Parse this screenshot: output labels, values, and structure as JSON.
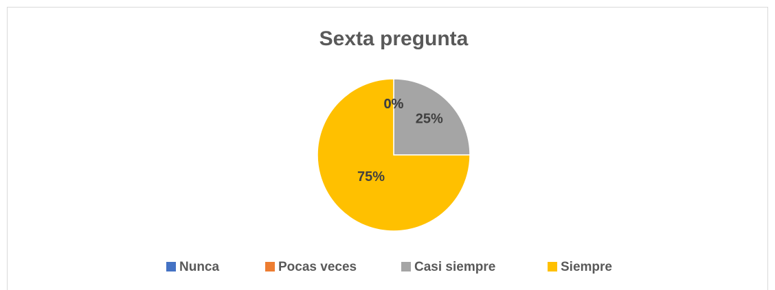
{
  "chart_data": {
    "type": "pie",
    "title": "Sexta pregunta",
    "categories": [
      "Nunca",
      "Pocas veces",
      "Casi siempre",
      "Siempre"
    ],
    "values": [
      0,
      0,
      25,
      75
    ],
    "value_labels": [
      "0%",
      "0%",
      "25%",
      "75%"
    ],
    "colors": [
      "#4472c4",
      "#ed7d31",
      "#a5a5a5",
      "#ffc000"
    ],
    "legend": "bottom"
  }
}
